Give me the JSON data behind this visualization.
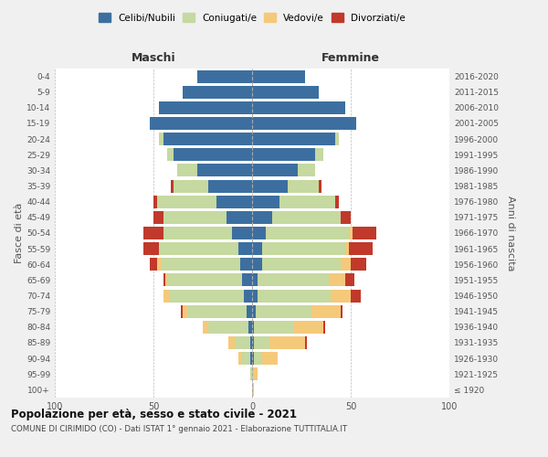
{
  "age_groups": [
    "100+",
    "95-99",
    "90-94",
    "85-89",
    "80-84",
    "75-79",
    "70-74",
    "65-69",
    "60-64",
    "55-59",
    "50-54",
    "45-49",
    "40-44",
    "35-39",
    "30-34",
    "25-29",
    "20-24",
    "15-19",
    "10-14",
    "5-9",
    "0-4"
  ],
  "birth_years": [
    "≤ 1920",
    "1921-1925",
    "1926-1930",
    "1931-1935",
    "1936-1940",
    "1941-1945",
    "1946-1950",
    "1951-1955",
    "1956-1960",
    "1961-1965",
    "1966-1970",
    "1971-1975",
    "1976-1980",
    "1981-1985",
    "1986-1990",
    "1991-1995",
    "1996-2000",
    "2001-2005",
    "2006-2010",
    "2011-2015",
    "2016-2020"
  ],
  "colors": {
    "celibi": "#3c6fa0",
    "coniugati": "#c5d9a0",
    "vedovi": "#f5c97a",
    "divorziati": "#c0392b"
  },
  "male": {
    "celibi": [
      0,
      0,
      1,
      1,
      2,
      3,
      4,
      5,
      6,
      7,
      10,
      13,
      18,
      22,
      28,
      40,
      45,
      52,
      47,
      35,
      28
    ],
    "coniugati": [
      0,
      1,
      4,
      8,
      20,
      30,
      38,
      38,
      40,
      40,
      35,
      32,
      30,
      18,
      10,
      3,
      2,
      0,
      0,
      0,
      0
    ],
    "vedovi": [
      0,
      0,
      2,
      3,
      3,
      2,
      3,
      1,
      2,
      0,
      0,
      0,
      0,
      0,
      0,
      0,
      0,
      0,
      0,
      0,
      0
    ],
    "divorziati": [
      0,
      0,
      0,
      0,
      0,
      1,
      0,
      1,
      4,
      8,
      10,
      5,
      2,
      1,
      0,
      0,
      0,
      0,
      0,
      0,
      0
    ]
  },
  "female": {
    "celibi": [
      0,
      0,
      1,
      1,
      1,
      2,
      3,
      3,
      5,
      5,
      7,
      10,
      14,
      18,
      23,
      32,
      42,
      53,
      47,
      34,
      27
    ],
    "coniugati": [
      0,
      1,
      4,
      8,
      20,
      28,
      37,
      36,
      40,
      42,
      42,
      35,
      28,
      16,
      9,
      4,
      2,
      0,
      0,
      0,
      0
    ],
    "vedovi": [
      1,
      2,
      8,
      18,
      15,
      15,
      10,
      8,
      5,
      2,
      2,
      0,
      0,
      0,
      0,
      0,
      0,
      0,
      0,
      0,
      0
    ],
    "divorziati": [
      0,
      0,
      0,
      1,
      1,
      1,
      5,
      5,
      8,
      12,
      12,
      5,
      2,
      1,
      0,
      0,
      0,
      0,
      0,
      0,
      0
    ]
  },
  "title_bold": "Popolazione per età, sesso e stato civile - 2021",
  "subtitle": "COMUNE DI CIRIMIDO (CO) - Dati ISTAT 1° gennaio 2021 - Elaborazione TUTTITALIA.IT",
  "xlabel_maschi": "Maschi",
  "xlabel_femmine": "Femmine",
  "ylabel_left": "Fasce di età",
  "ylabel_right": "Anni di nascita",
  "xlim": 100,
  "bg_color": "#f0f0f0",
  "plot_bg": "#ffffff",
  "legend_labels": [
    "Celibi/Nubili",
    "Coniugati/e",
    "Vedovi/e",
    "Divorziati/e"
  ]
}
